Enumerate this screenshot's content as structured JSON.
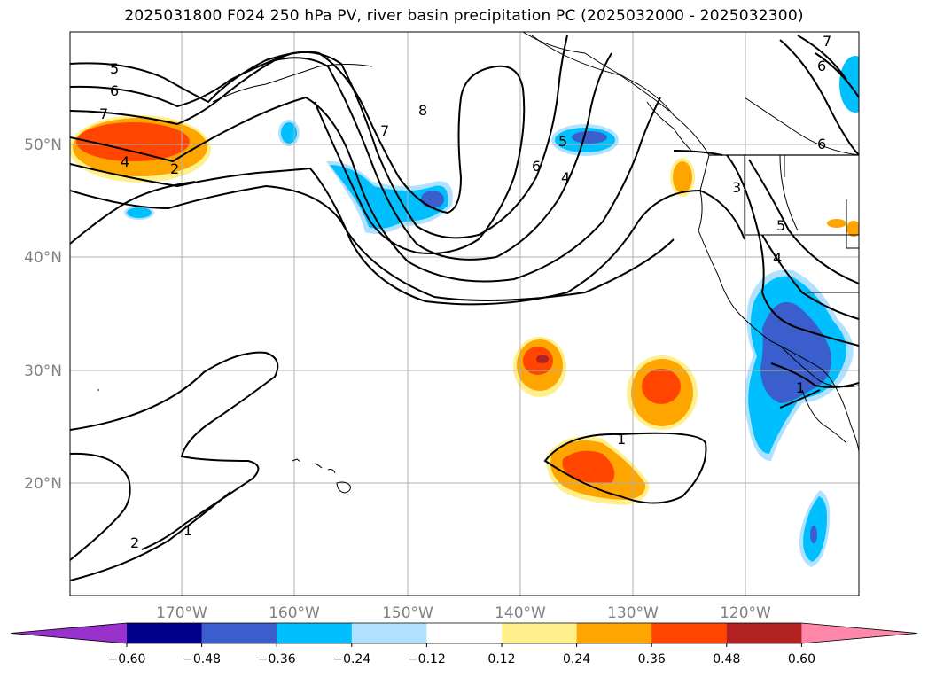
{
  "title": "2025031800 F024 250 hPa PV, river basin precipitation PC (2025032000 - 2025032300)",
  "lat_labels": [
    "50°N",
    "40°N",
    "30°N",
    "20°N"
  ],
  "lon_labels": [
    "170°W",
    "160°W",
    "150°W",
    "140°W",
    "130°W",
    "120°W"
  ],
  "colorbar": {
    "tick_labels": [
      "−0.60",
      "−0.48",
      "−0.36",
      "−0.24",
      "−0.12",
      "0.12",
      "0.24",
      "0.36",
      "0.48",
      "0.60"
    ],
    "colors": [
      "#9932cc",
      "#00008b",
      "#3a5fcd",
      "#00bfff",
      "#b0e2ff",
      "#ffffff",
      "#fff08c",
      "#ffa500",
      "#ff4500",
      "#b22222",
      "#ff88aa"
    ]
  },
  "contour_labels": [
    "5",
    "6",
    "7",
    "4",
    "2",
    "7",
    "8",
    "6",
    "5",
    "4",
    "3",
    "5",
    "6",
    "7",
    "6",
    "4",
    "1",
    "1",
    "2",
    "1"
  ],
  "colors": {
    "grid": "#b0b0b0",
    "coast": "#000000",
    "axis_label": "#808080"
  }
}
